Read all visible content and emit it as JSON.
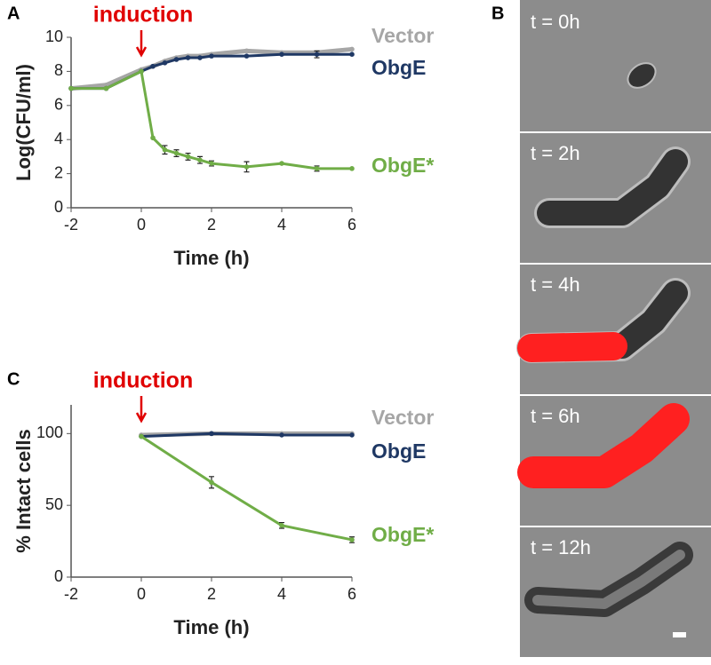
{
  "panel_labels": [
    "A",
    "B",
    "C"
  ],
  "micrographs": [
    "t = 0h",
    "t = 2h",
    "t = 4h",
    "t = 6h",
    "t = 12h"
  ],
  "chart_data": [
    {
      "type": "line",
      "xlabel": "Time (h)",
      "ylabel": "Log(CFU/ml)",
      "annotation": {
        "text": "induction",
        "x": 0
      },
      "x": [
        -2,
        -1,
        0,
        0.33,
        0.67,
        1,
        1.33,
        1.67,
        2,
        3,
        4,
        5,
        6
      ],
      "xlim": [
        -2,
        6
      ],
      "xticks": [
        -2,
        0,
        2,
        4,
        6
      ],
      "ylim": [
        0,
        10
      ],
      "yticks": [
        0,
        2,
        4,
        6,
        8,
        10
      ],
      "series": [
        {
          "name": "Vector",
          "color": "#a6a6a6",
          "values": [
            7,
            7.2,
            8.1,
            8.3,
            8.6,
            8.8,
            8.9,
            8.9,
            9,
            9.2,
            9.1,
            9.1,
            9.3
          ]
        },
        {
          "name": "ObgE",
          "color": "#1f3864",
          "values": [
            7,
            7,
            8,
            8.3,
            8.5,
            8.7,
            8.8,
            8.8,
            8.9,
            8.9,
            9,
            9,
            9
          ],
          "errors": [
            null,
            null,
            null,
            null,
            null,
            null,
            null,
            null,
            null,
            null,
            null,
            0.2,
            null
          ]
        },
        {
          "name": "ObgE*",
          "color": "#70ad47",
          "values": [
            7,
            7,
            8,
            4.1,
            3.4,
            3.2,
            3,
            2.8,
            2.6,
            2.4,
            2.6,
            2.3,
            2.3
          ],
          "errors": [
            null,
            null,
            null,
            null,
            0.25,
            0.2,
            0.2,
            0.2,
            0.15,
            0.3,
            null,
            0.15,
            null
          ]
        }
      ]
    },
    {
      "type": "line",
      "xlabel": "Time (h)",
      "ylabel": "% Intact cells",
      "annotation": {
        "text": "induction",
        "x": 0
      },
      "x": [
        0,
        2,
        4,
        6
      ],
      "xlim": [
        -2,
        6
      ],
      "xticks": [
        -2,
        0,
        2,
        4,
        6
      ],
      "ylim": [
        0,
        120
      ],
      "yticks": [
        0,
        50,
        100
      ],
      "series": [
        {
          "name": "Vector",
          "color": "#a6a6a6",
          "values": [
            99,
            100,
            100,
            100
          ]
        },
        {
          "name": "ObgE",
          "color": "#1f3864",
          "values": [
            98,
            100,
            99,
            99
          ]
        },
        {
          "name": "ObgE*",
          "color": "#70ad47",
          "values": [
            98,
            66,
            36,
            26
          ],
          "errors": [
            null,
            4,
            2,
            2
          ]
        }
      ]
    }
  ]
}
